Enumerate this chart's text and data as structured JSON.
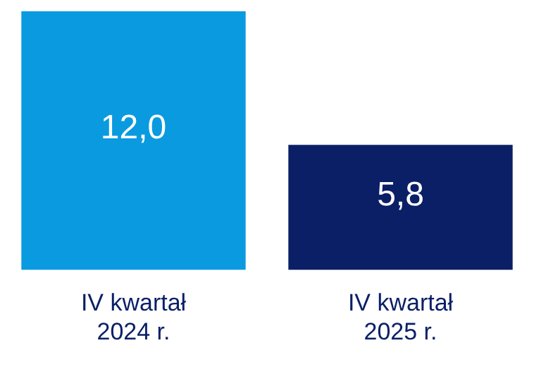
{
  "chart_data": {
    "type": "bar",
    "categories": [
      "IV kwartał\n2024 r.",
      "IV kwartał\n2025 r."
    ],
    "values": [
      12.0,
      5.8
    ],
    "colors": [
      "#0a9ae0",
      "#0a1f66"
    ],
    "value_labels": [
      "12,0",
      "5,8"
    ],
    "grid": false,
    "legend": false
  }
}
